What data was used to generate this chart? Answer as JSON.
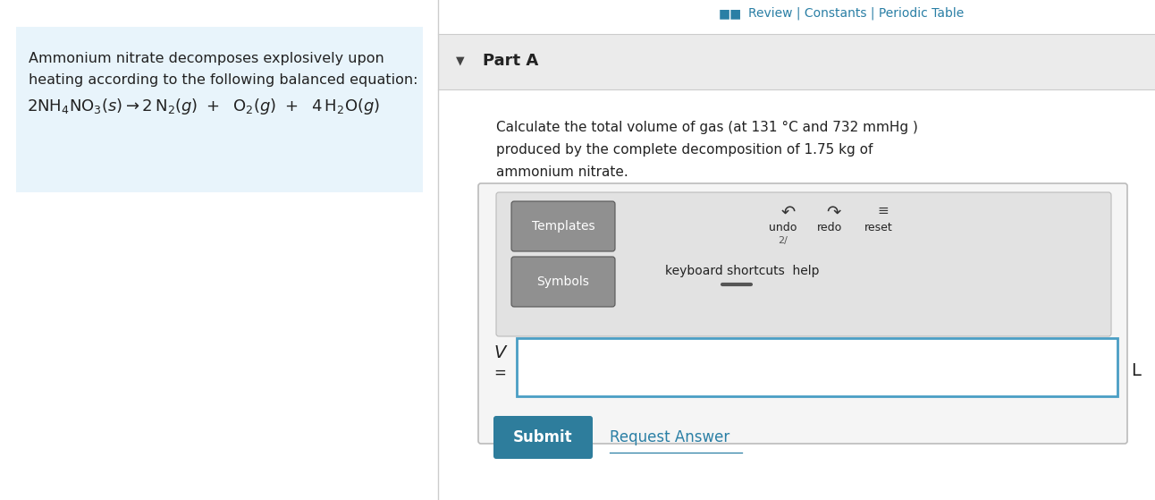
{
  "bg_color": "#ffffff",
  "left_panel_bg": "#e8f4fb",
  "left_text_line1": "Ammonium nitrate decomposes explosively upon",
  "left_text_line2": "heating according to the following balanced equation:",
  "header_text": "Review | Constants | Periodic Table",
  "header_squares": "■■",
  "header_color": "#2a7fa5",
  "header_sep_color": "#cccccc",
  "part_a_bg": "#ebebeb",
  "part_a_text": "Part A",
  "part_a_arrow": "▼",
  "question_line1": "Calculate the total volume of gas (at 131 °C and 732 mmHg )",
  "question_line2": "produced by the complete decomposition of 1.75 kg of",
  "question_line3": "ammonium nitrate.",
  "toolbar_bg": "#e8e8e8",
  "toolbar_border": "#aaaaaa",
  "outer_box_bg": "#f5f5f5",
  "outer_box_border": "#bbbbbb",
  "templates_btn_text": "Templates",
  "templates_btn_bg": "#888888",
  "symbols_btn_text": "Symbols",
  "symbols_btn_bg": "#888888",
  "undo_text": "undo",
  "redo_text": "redo",
  "reset_text": "reset",
  "keyboard_text": "keyboard shortcuts",
  "help_text": "help",
  "v_label": "V",
  "equals_label": "=",
  "l_label": "L",
  "input_field_border": "#4a9ec4",
  "input_field_bg": "#ffffff",
  "submit_btn_text": "Submit",
  "submit_btn_color": "#2e7d9c",
  "request_text": "Request Answer",
  "request_color": "#2a7fa5",
  "divider_color": "#cccccc",
  "dark_text": "#222222"
}
